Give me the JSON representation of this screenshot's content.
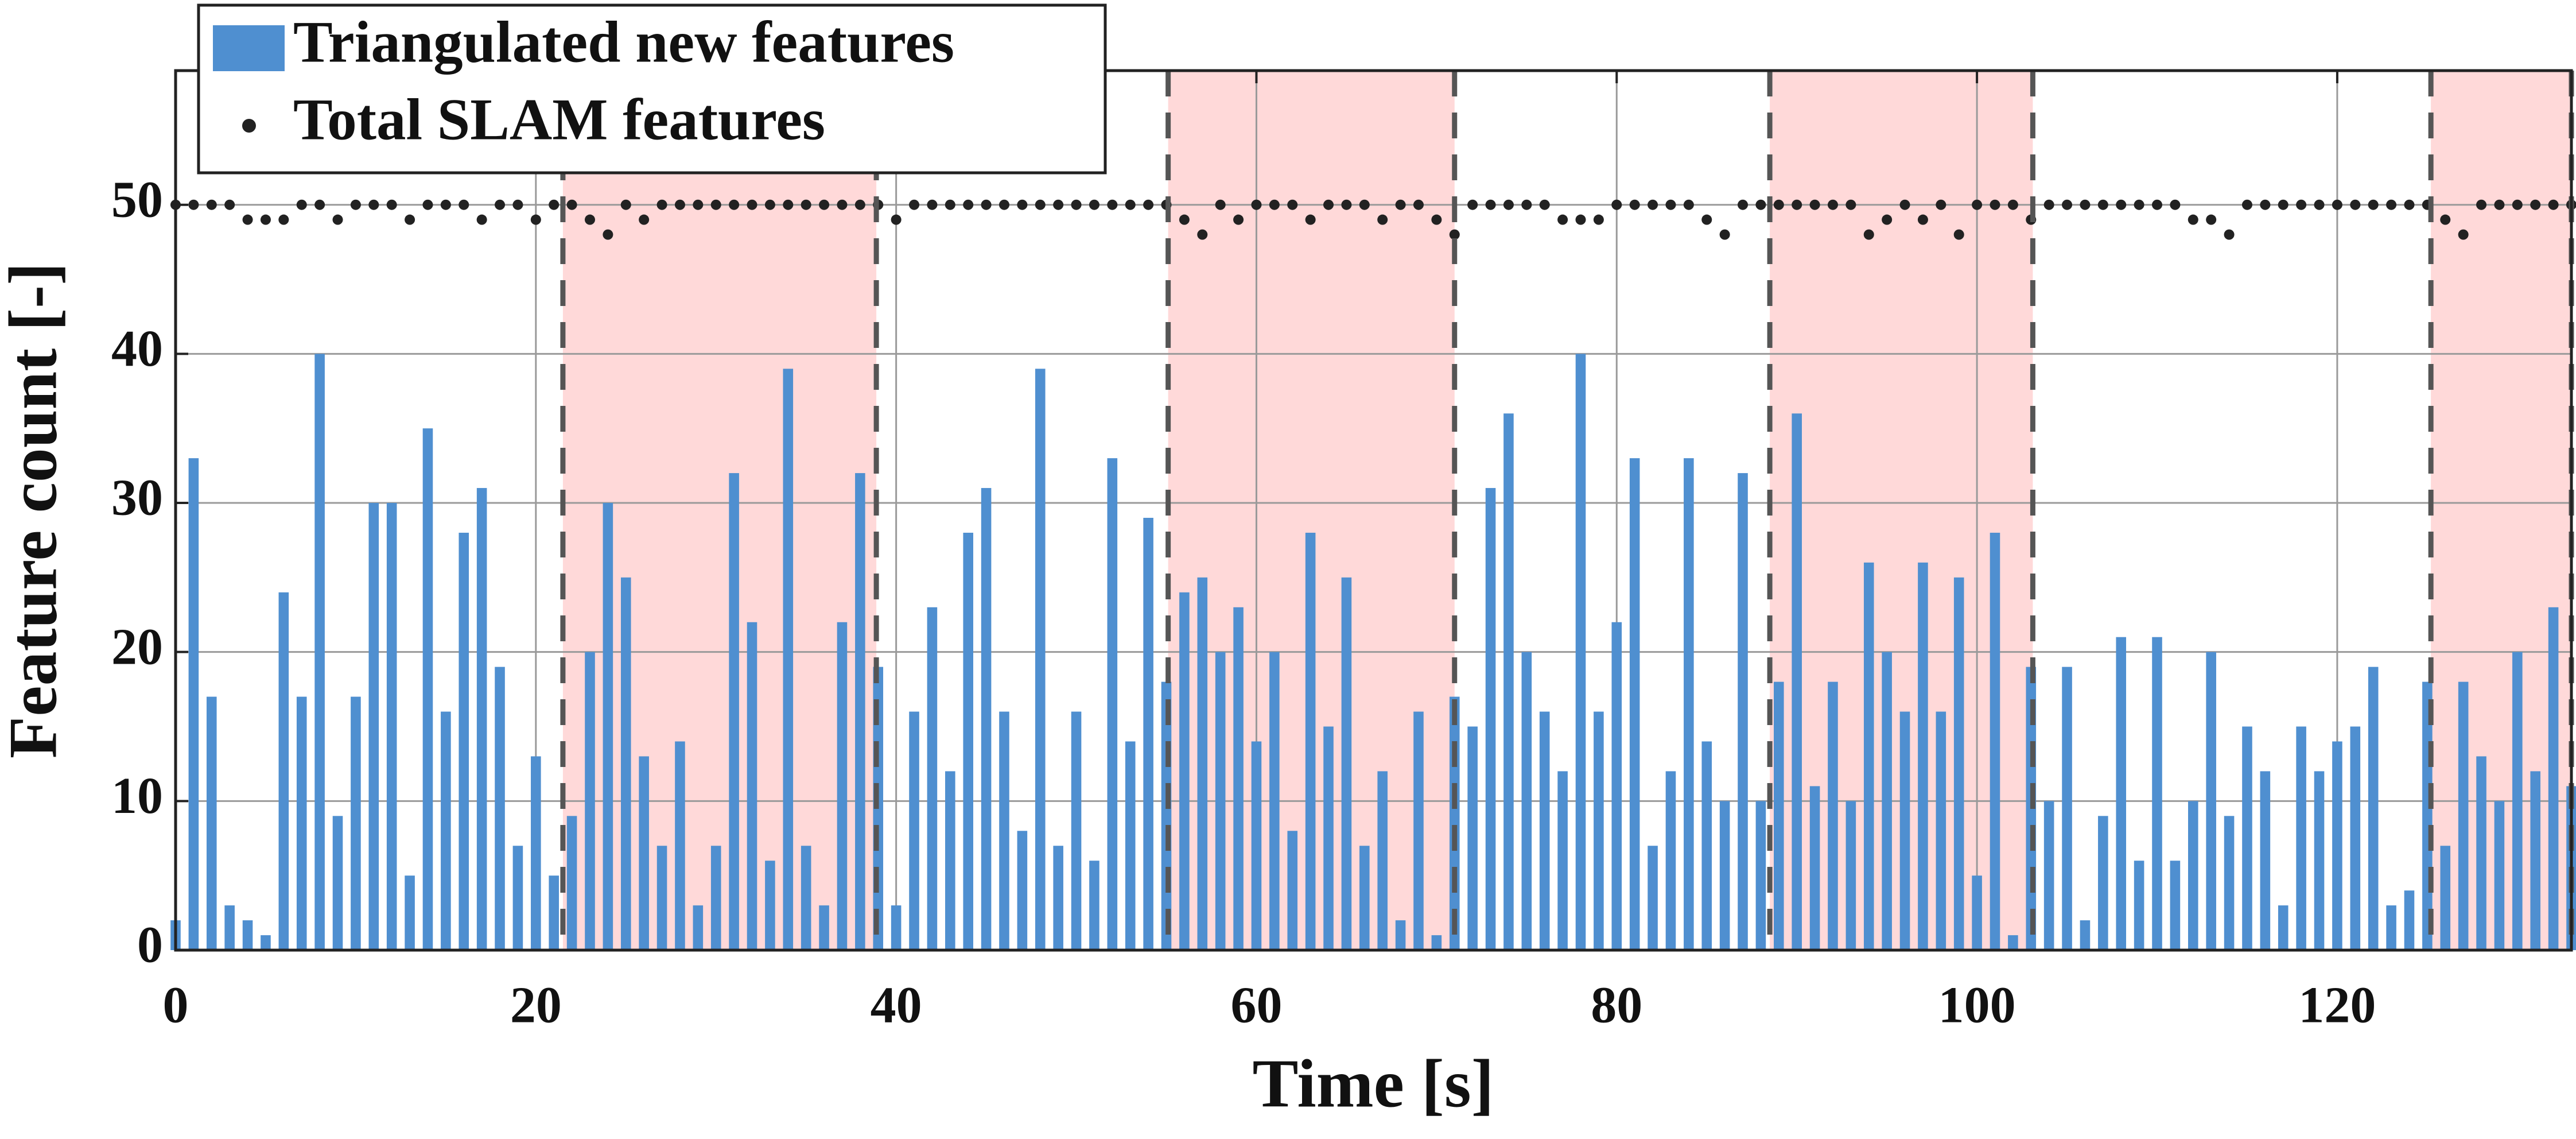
{
  "chart_data": {
    "type": "bar",
    "xlabel": "Time [s]",
    "ylabel": "Feature count [-]",
    "x": [
      0,
      1,
      2,
      3,
      4,
      5,
      6,
      7,
      8,
      9,
      10,
      11,
      12,
      13,
      14,
      15,
      16,
      17,
      18,
      19,
      20,
      21,
      22,
      23,
      24,
      25,
      26,
      27,
      28,
      29,
      30,
      31,
      32,
      33,
      34,
      35,
      36,
      37,
      38,
      39,
      40,
      41,
      42,
      43,
      44,
      45,
      46,
      47,
      48,
      49,
      50,
      51,
      52,
      53,
      54,
      55,
      56,
      57,
      58,
      59,
      60,
      61,
      62,
      63,
      64,
      65,
      66,
      67,
      68,
      69,
      70,
      71,
      72,
      73,
      74,
      75,
      76,
      77,
      78,
      79,
      80,
      81,
      82,
      83,
      84,
      85,
      86,
      87,
      88,
      89,
      90,
      91,
      92,
      93,
      94,
      95,
      96,
      97,
      98,
      99,
      100,
      101,
      102,
      103,
      104,
      105,
      106,
      107,
      108,
      109,
      110,
      111,
      112,
      113,
      114,
      115,
      116,
      117,
      118,
      119,
      120,
      121,
      122,
      123,
      124,
      125,
      126,
      127,
      128,
      129,
      130,
      131,
      132,
      133
    ],
    "series": [
      {
        "name": "Triangulated new features",
        "color": "#4f8fd0",
        "style": "bar",
        "values": [
          2,
          33,
          17,
          3,
          2,
          1,
          24,
          17,
          40,
          9,
          17,
          30,
          30,
          5,
          35,
          16,
          28,
          31,
          19,
          7,
          13,
          5,
          9,
          20,
          30,
          25,
          13,
          7,
          14,
          3,
          7,
          32,
          22,
          6,
          39,
          7,
          3,
          22,
          32,
          19,
          3,
          16,
          23,
          12,
          28,
          31,
          16,
          8,
          39,
          7,
          16,
          6,
          33,
          14,
          29,
          18,
          24,
          25,
          20,
          23,
          14,
          20,
          8,
          28,
          15,
          25,
          7,
          12,
          2,
          16,
          1,
          17,
          15,
          31,
          36,
          20,
          16,
          12,
          40,
          16,
          22,
          33,
          7,
          12,
          33,
          14,
          10,
          32,
          10,
          18,
          36,
          11,
          18,
          10,
          26,
          20,
          16,
          26,
          16,
          25,
          5,
          28,
          1,
          19,
          10,
          19,
          2,
          9,
          21,
          6,
          21,
          6,
          10,
          20,
          9,
          15,
          12,
          3,
          15,
          12,
          14,
          15,
          19,
          3,
          4,
          18,
          7,
          18,
          13,
          10,
          20,
          12,
          23,
          11
        ]
      },
      {
        "name": "Total SLAM features",
        "color": "#222222",
        "style": "dot",
        "values": [
          50,
          50,
          50,
          50,
          49,
          49,
          49,
          50,
          50,
          49,
          50,
          50,
          50,
          49,
          50,
          50,
          50,
          49,
          50,
          50,
          49,
          50,
          50,
          49,
          48,
          50,
          49,
          50,
          50,
          50,
          50,
          50,
          50,
          50,
          50,
          50,
          50,
          50,
          50,
          50,
          49,
          50,
          50,
          50,
          50,
          50,
          50,
          50,
          50,
          50,
          50,
          50,
          50,
          50,
          50,
          50,
          49,
          48,
          50,
          49,
          50,
          50,
          50,
          49,
          50,
          50,
          50,
          49,
          50,
          50,
          49,
          48,
          50,
          50,
          50,
          50,
          50,
          49,
          49,
          49,
          50,
          50,
          50,
          50,
          50,
          49,
          48,
          50,
          50,
          50,
          50,
          50,
          50,
          50,
          48,
          49,
          50,
          49,
          50,
          48,
          50,
          50,
          50,
          49,
          50,
          50,
          50,
          50,
          50,
          50,
          50,
          50,
          49,
          49,
          48,
          50,
          50,
          50,
          50,
          50,
          50,
          50,
          50,
          50,
          50,
          50,
          49,
          48,
          50,
          50,
          50,
          50,
          50,
          50
        ]
      }
    ],
    "shaded_regions": [
      [
        21.5,
        38.9
      ],
      [
        55.1,
        71.0
      ],
      [
        88.5,
        103.1
      ],
      [
        125.2,
        133
      ]
    ],
    "shade_color": "#ffd9d9",
    "xlim": [
      0,
      133
    ],
    "ylim": [
      0,
      59
    ],
    "xticks": [
      0,
      20,
      40,
      60,
      80,
      100,
      120
    ],
    "yticks": [
      0,
      10,
      20,
      30,
      40,
      50
    ],
    "grid": true,
    "legend": "top-left"
  }
}
